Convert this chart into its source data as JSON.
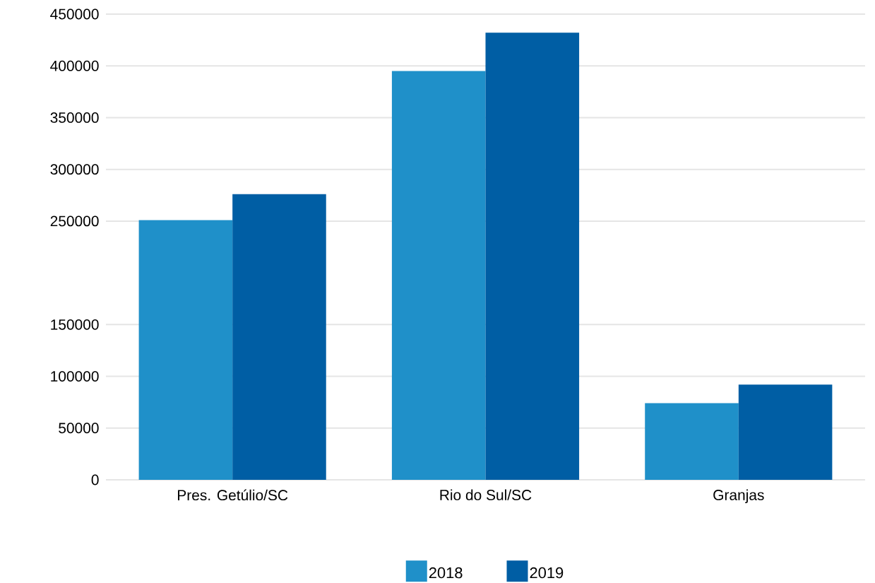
{
  "chart_data": {
    "type": "bar",
    "categories": [
      "Pres. Getúlio/SC",
      "Rio do Sul/SC",
      "Granjas"
    ],
    "series": [
      {
        "name": "2018",
        "color": "#1f90c9",
        "values": [
          251000,
          395000,
          74000
        ]
      },
      {
        "name": "2019",
        "color": "#005ea4",
        "values": [
          276000,
          432000,
          92000
        ]
      }
    ],
    "ylim": [
      0,
      450000
    ],
    "yticks": [
      0,
      50000,
      100000,
      150000,
      250000,
      300000,
      350000,
      400000,
      450000
    ],
    "grid": "y",
    "legend": "bottom"
  }
}
